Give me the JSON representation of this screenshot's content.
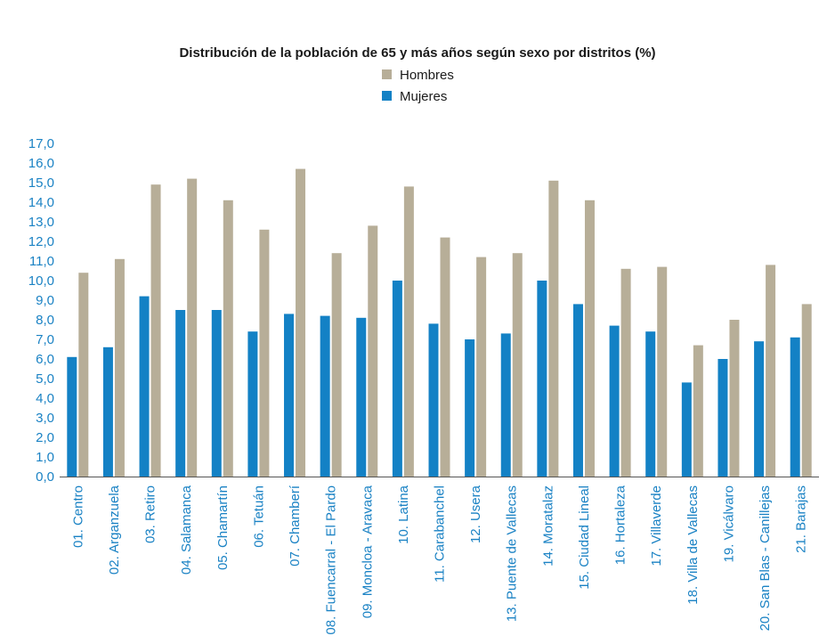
{
  "chart_data": {
    "type": "bar",
    "title": "Distribución de la población de 65 y más años según sexo por distritos (%)",
    "xlabel": "",
    "ylabel": "",
    "ylim": [
      0,
      17
    ],
    "ytick_step": 1,
    "ytick_labels": [
      "0,0",
      "1,0",
      "2,0",
      "3,0",
      "4,0",
      "5,0",
      "6,0",
      "7,0",
      "8,0",
      "9,0",
      "10,0",
      "11,0",
      "12,0",
      "13,0",
      "14,0",
      "15,0",
      "16,0",
      "17,0"
    ],
    "grid": false,
    "legend_position": "top-center",
    "categories": [
      "01. Centro",
      "02. Arganzuela",
      "03. Retiro",
      "04. Salamanca",
      "05. Chamartín",
      "06. Tetuán",
      "07. Chamberí",
      "08. Fuencarral - El Pardo",
      "09. Moncloa - Aravaca",
      "10. Latina",
      "11. Carabanchel",
      "12. Usera",
      "13. Puente de Vallecas",
      "14. Moratalaz",
      "15. Ciudad Lineal",
      "16. Hortaleza",
      "17. Villaverde",
      "18. Villa de Vallecas",
      "19. Vicálvaro",
      "20. San Blas - Canillejas",
      "21. Barajas"
    ],
    "series": [
      {
        "name": "Hombres",
        "color": "#b7ae98",
        "values": [
          10.4,
          11.1,
          14.9,
          15.2,
          14.1,
          12.6,
          15.7,
          11.4,
          12.8,
          14.8,
          12.2,
          11.2,
          11.4,
          15.1,
          14.1,
          10.6,
          10.7,
          6.7,
          8.0,
          10.8,
          8.8
        ]
      },
      {
        "name": "Mujeres",
        "color": "#1381c5",
        "values": [
          6.1,
          6.6,
          9.2,
          8.5,
          8.5,
          7.4,
          8.3,
          8.2,
          8.1,
          10.0,
          7.8,
          7.0,
          7.3,
          10.0,
          8.8,
          7.7,
          7.4,
          4.8,
          6.0,
          6.9,
          7.1
        ]
      }
    ]
  }
}
